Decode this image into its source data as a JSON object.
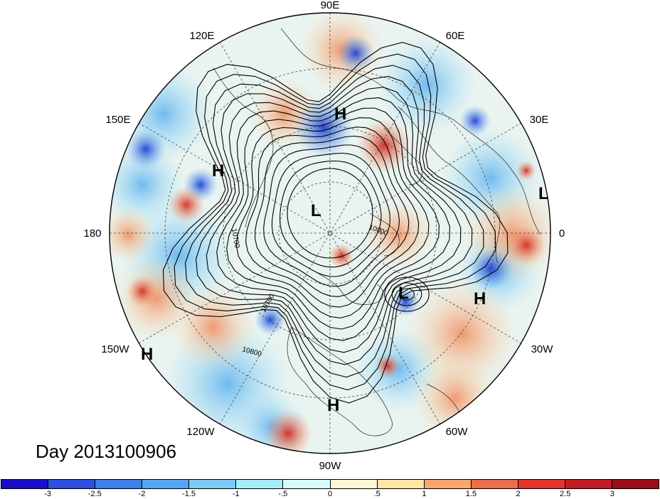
{
  "map": {
    "projection": "north-polar-stereographic",
    "longitude_labels": {
      "top": "90E",
      "top_left": "120E",
      "top_right": "60E",
      "upper_left": "150E",
      "upper_right": "30E",
      "left": "180",
      "right": "0",
      "lower_left": "150W",
      "lower_right": "30W",
      "bottom_left": "120W",
      "bottom_right": "60W",
      "bottom": "90W"
    },
    "pressure_centers": [
      {
        "label": "H",
        "name": "high-center-siberia"
      },
      {
        "label": "H",
        "name": "high-center-east-siberia"
      },
      {
        "label": "L",
        "name": "low-center-arctic"
      },
      {
        "label": "L",
        "name": "low-center-europe"
      },
      {
        "label": "L",
        "name": "low-center-north-atlantic"
      },
      {
        "label": "H",
        "name": "high-center-atlantic"
      },
      {
        "label": "H",
        "name": "high-center-pacific"
      },
      {
        "label": "H",
        "name": "high-center-central-america"
      }
    ],
    "contour_labels": [
      "10700",
      "10000",
      "10700",
      "10800"
    ],
    "colors": {
      "ocean_base": "#f4ead0",
      "strong_negative": "#2a2ad0",
      "strong_positive": "#b81818"
    }
  },
  "title": {
    "day_text": "Day 2013100906"
  },
  "colorbar": {
    "colors": [
      "#1a0fc8",
      "#2f4fe0",
      "#3f7fe8",
      "#56a5f2",
      "#7fcaf5",
      "#a6ecfa",
      "#d7fbfb",
      "#fff7d4",
      "#fee6a6",
      "#f7a86c",
      "#ec6e4d",
      "#e3362f",
      "#c41c22",
      "#9a0e1a"
    ],
    "ticks": [
      "-3",
      "-2.5",
      "-2",
      "-1.5",
      "-1",
      "-.5",
      "0",
      ".5",
      "1",
      "1.5",
      "2",
      "2.5",
      "3"
    ]
  }
}
